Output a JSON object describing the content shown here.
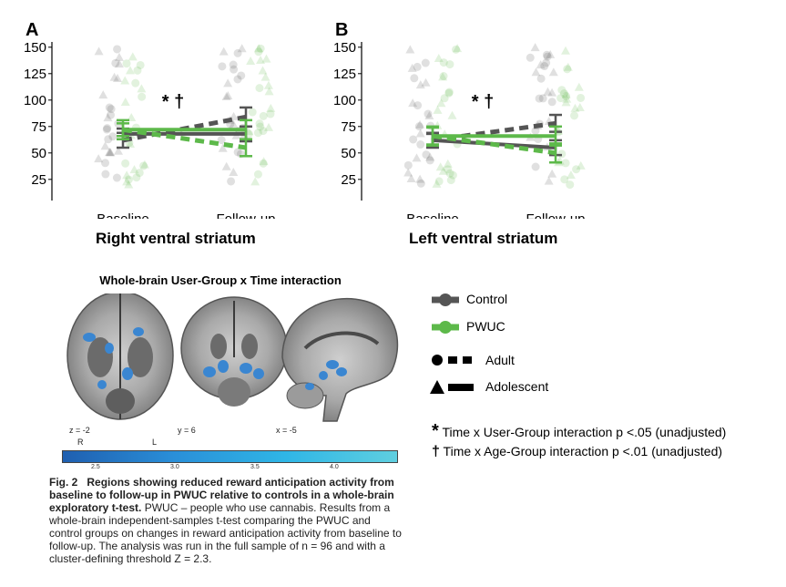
{
  "panels": {
    "A": {
      "letter": "A",
      "xlabel": "Right ventral striatum"
    },
    "B": {
      "letter": "B",
      "xlabel": "Left ventral striatum"
    }
  },
  "significance_markers": "* †",
  "chart_data": [
    {
      "type": "line",
      "panel": "A",
      "title": "",
      "xlabel": "Right ventral striatum",
      "ylabel": "",
      "categories": [
        "Baseline",
        "Follow-up"
      ],
      "yticks": [
        25,
        50,
        75,
        100,
        125,
        150
      ],
      "ylim": [
        5,
        155
      ],
      "series": [
        {
          "name": "Control Adult",
          "group": "Control",
          "age": "Adult",
          "values": [
            62,
            84
          ],
          "err": [
            7,
            9
          ]
        },
        {
          "name": "Control Adolescent",
          "group": "Control",
          "age": "Adolescent",
          "values": [
            68,
            68
          ],
          "err": [
            5,
            7
          ]
        },
        {
          "name": "PWUC Adult",
          "group": "PWUC",
          "age": "Adult",
          "values": [
            72,
            55
          ],
          "err": [
            6,
            8
          ]
        },
        {
          "name": "PWUC Adolescent",
          "group": "PWUC",
          "age": "Adolescent",
          "values": [
            72,
            72
          ],
          "err": [
            9,
            9
          ]
        }
      ]
    },
    {
      "type": "line",
      "panel": "B",
      "title": "",
      "xlabel": "Left ventral striatum",
      "ylabel": "",
      "categories": [
        "Baseline",
        "Follow-up"
      ],
      "yticks": [
        25,
        50,
        75,
        100,
        125,
        150
      ],
      "ylim": [
        5,
        155
      ],
      "series": [
        {
          "name": "Control Adult",
          "group": "Control",
          "age": "Adult",
          "values": [
            62,
            78
          ],
          "err": [
            7,
            8
          ]
        },
        {
          "name": "Control Adolescent",
          "group": "Control",
          "age": "Adolescent",
          "values": [
            62,
            55
          ],
          "err": [
            6,
            7
          ]
        },
        {
          "name": "PWUC Adult",
          "group": "PWUC",
          "age": "Adult",
          "values": [
            66,
            50
          ],
          "err": [
            8,
            9
          ]
        },
        {
          "name": "PWUC Adolescent",
          "group": "PWUC",
          "age": "Adolescent",
          "values": [
            66,
            66
          ],
          "err": [
            9,
            9
          ]
        }
      ]
    }
  ],
  "brain": {
    "title": "Whole-brain User-Group x Time interaction",
    "slices": [
      "z = -2",
      "y = 6",
      "x = -5"
    ],
    "orientation": [
      "R",
      "L"
    ],
    "colorbar_ticks": [
      "2.5",
      "3.0",
      "3.5",
      "4.0"
    ],
    "colorbar_range": [
      2.3,
      4.3
    ]
  },
  "legend": {
    "items": [
      {
        "label": "Control",
        "color": "#555555",
        "kind": "group"
      },
      {
        "label": "PWUC",
        "color": "#5db94a",
        "kind": "group"
      },
      {
        "label": "Adult",
        "kind": "adult"
      },
      {
        "label": "Adolescent",
        "kind": "adolescent"
      }
    ]
  },
  "notes": [
    {
      "symbol": "*",
      "text": "Time x User-Group interaction p <.05 (unadjusted)"
    },
    {
      "symbol": "†",
      "text": "Time x Age-Group interaction p <.01 (unadjusted)"
    }
  ],
  "caption": {
    "label": "Fig. 2",
    "bold": "Regions showing reduced reward anticipation activity from baseline to follow-up in PWUC relative to controls in a whole-brain exploratory t-test.",
    "body": "PWUC – people who use cannabis. Results from a whole-brain independent-samples t-test comparing the PWUC and control groups on changes in reward anticipation activity from baseline to follow-up. The analysis was run in the full sample of n = 96 and with a cluster-defining threshold Z = 2.3."
  },
  "colors": {
    "control": "#555555",
    "pwuc": "#5db94a"
  }
}
